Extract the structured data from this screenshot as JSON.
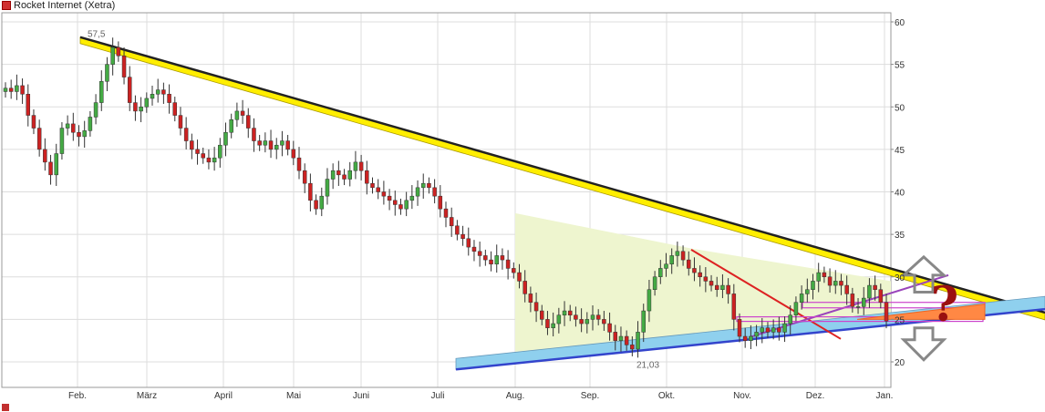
{
  "chart_data": {
    "type": "candlestick",
    "title": "Rocket Internet (Xetra)",
    "bottom_legend": "",
    "x_labels": [
      "Feb.",
      "März",
      "April",
      "Mai",
      "Juni",
      "Juli",
      "Aug.",
      "Sep.",
      "Okt.",
      "Nov.",
      "Dez.",
      "Jan."
    ],
    "y_ticks": [
      20,
      25,
      30,
      35,
      40,
      45,
      50,
      55,
      60
    ],
    "ylim": [
      18,
      61
    ],
    "grid": true,
    "annotations": {
      "high": "57,5",
      "low": "21,03",
      "question_mark": "?"
    },
    "close_series": [
      52.2,
      51.8,
      52.5,
      51.5,
      49.0,
      47.5,
      45.0,
      43.5,
      42.0,
      44.5,
      47.5,
      48.0,
      47.0,
      46.5,
      47.2,
      48.8,
      50.5,
      53.0,
      55.0,
      57.0,
      56.0,
      53.5,
      50.5,
      49.5,
      50.0,
      51.0,
      51.5,
      52.0,
      51.5,
      50.5,
      49.0,
      47.5,
      46.0,
      45.0,
      44.5,
      44.0,
      43.5,
      44.0,
      45.5,
      47.0,
      48.5,
      49.5,
      49.0,
      47.5,
      46.0,
      45.5,
      46.0,
      45.0,
      45.5,
      46.0,
      45.0,
      44.0,
      42.5,
      41.0,
      39.0,
      38.0,
      39.5,
      41.5,
      42.5,
      42.0,
      41.5,
      42.5,
      43.5,
      42.5,
      41.0,
      40.5,
      40.0,
      39.5,
      39.0,
      38.5,
      38.0,
      39.0,
      39.5,
      40.5,
      41.0,
      40.5,
      39.5,
      38.0,
      37.0,
      36.0,
      35.0,
      34.5,
      33.5,
      33.0,
      32.5,
      32.0,
      31.5,
      32.5,
      32.0,
      31.0,
      30.5,
      29.5,
      28.0,
      27.0,
      26.0,
      25.0,
      24.0,
      24.5,
      25.5,
      26.0,
      25.5,
      25.0,
      24.5,
      25.0,
      25.5,
      25.0,
      24.5,
      23.5,
      22.5,
      23.0,
      22.0,
      21.5,
      23.5,
      26.0,
      28.5,
      30.0,
      31.0,
      31.5,
      32.5,
      33.0,
      32.0,
      31.0,
      30.5,
      30.0,
      29.5,
      29.0,
      28.5,
      29.0,
      28.0,
      25.0,
      23.0,
      22.5,
      23.0,
      23.5,
      24.0,
      23.5,
      24.0,
      23.5,
      24.5,
      25.5,
      27.0,
      28.0,
      28.5,
      29.5,
      30.5,
      30.0,
      29.0,
      29.5,
      29.0,
      28.0,
      26.5,
      26.5,
      27.5,
      29.0,
      28.5,
      27.0,
      24.8
    ],
    "series_color_up": "#44aa44",
    "series_color_down": "#cc2222",
    "trendlines": [
      {
        "name": "Abwärtstrend",
        "color": "#222222",
        "fill": "#ffee00"
      },
      {
        "name": "Aufwärtstrend",
        "color": "#3344cc",
        "fill": "#8fd0ee"
      },
      {
        "name": "Zwischentrend rot",
        "color": "#dd2222"
      },
      {
        "name": "Trend violett",
        "color": "#9944bb"
      }
    ],
    "zone_fill": "#eef5cf",
    "arrow_color": "#888888",
    "question_color": "#9a1010"
  }
}
